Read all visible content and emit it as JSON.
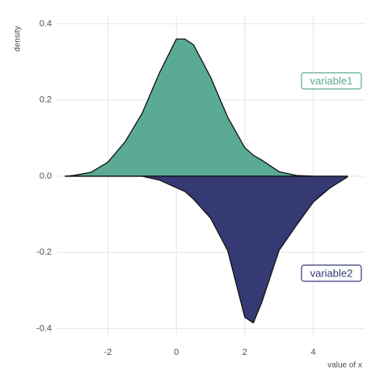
{
  "chart_data": {
    "type": "mirror-density",
    "x_label": "value of x",
    "y_label": "density",
    "x": [
      -3.25,
      -3,
      -2.5,
      -2,
      -1.5,
      -1,
      -0.5,
      0,
      0.25,
      0.5,
      1,
      1.5,
      2,
      2.25,
      2.5,
      3,
      3.5,
      4,
      4.5,
      5
    ],
    "series": [
      {
        "name": "variable1",
        "color": "#5aaa95",
        "values": [
          0,
          0.002,
          0.01,
          0.037,
          0.09,
          0.165,
          0.27,
          0.36,
          0.36,
          0.345,
          0.26,
          0.155,
          0.075,
          0.055,
          0.042,
          0.012,
          0.002,
          0,
          0,
          0
        ]
      },
      {
        "name": "variable2",
        "color": "#363a74",
        "values": [
          0,
          0,
          0,
          0,
          0,
          0,
          -0.01,
          -0.03,
          -0.04,
          -0.06,
          -0.11,
          -0.195,
          -0.37,
          -0.385,
          -0.33,
          -0.195,
          -0.13,
          -0.068,
          -0.03,
          -0.002
        ]
      }
    ],
    "xlim": [
      -3.5,
      5.5
    ],
    "ylim": [
      -0.42,
      0.42
    ],
    "xticks": [
      -2,
      0,
      2,
      4
    ],
    "yticks": [
      -0.4,
      -0.2,
      0.0,
      0.2,
      0.4
    ],
    "grid": true
  }
}
